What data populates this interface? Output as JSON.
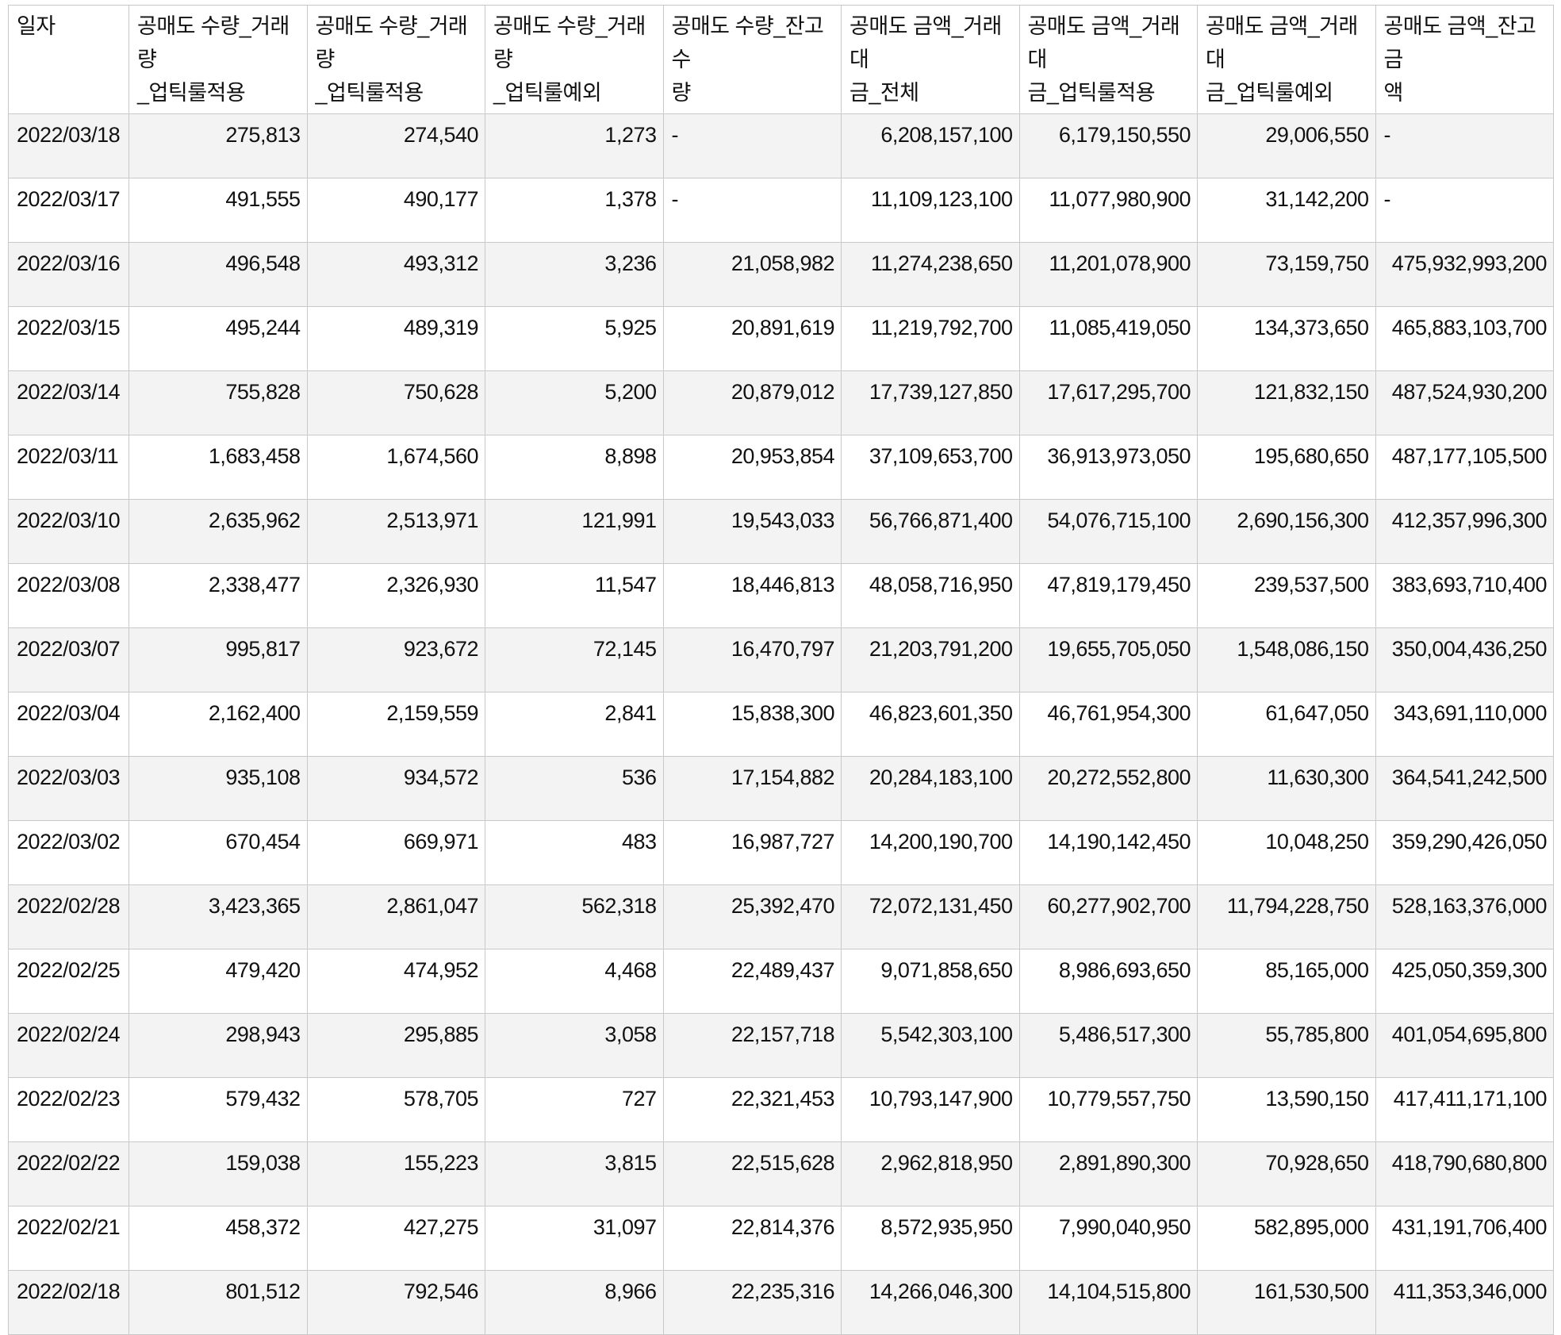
{
  "table": {
    "columns": [
      {
        "label": "일자",
        "align": "left"
      },
      {
        "label": "공매도 수량_거래량\n_업틱룰적용",
        "align": "right"
      },
      {
        "label": "공매도 수량_거래량\n_업틱룰적용",
        "align": "right"
      },
      {
        "label": "공매도 수량_거래량\n_업틱룰예외",
        "align": "right"
      },
      {
        "label": "공매도 수량_잔고수\n량",
        "align": "right"
      },
      {
        "label": "공매도 금액_거래대\n금_전체",
        "align": "right"
      },
      {
        "label": "공매도 금액_거래대\n금_업틱룰적용",
        "align": "right"
      },
      {
        "label": "공매도 금액_거래대\n금_업틱룰예외",
        "align": "right"
      },
      {
        "label": "공매도 금액_잔고금\n액",
        "align": "right"
      }
    ],
    "rows": [
      [
        "2022/03/18",
        "275,813",
        "274,540",
        "1,273",
        "-",
        "6,208,157,100",
        "6,179,150,550",
        "29,006,550",
        "-"
      ],
      [
        "2022/03/17",
        "491,555",
        "490,177",
        "1,378",
        "-",
        "11,109,123,100",
        "11,077,980,900",
        "31,142,200",
        "-"
      ],
      [
        "2022/03/16",
        "496,548",
        "493,312",
        "3,236",
        "21,058,982",
        "11,274,238,650",
        "11,201,078,900",
        "73,159,750",
        "475,932,993,200"
      ],
      [
        "2022/03/15",
        "495,244",
        "489,319",
        "5,925",
        "20,891,619",
        "11,219,792,700",
        "11,085,419,050",
        "134,373,650",
        "465,883,103,700"
      ],
      [
        "2022/03/14",
        "755,828",
        "750,628",
        "5,200",
        "20,879,012",
        "17,739,127,850",
        "17,617,295,700",
        "121,832,150",
        "487,524,930,200"
      ],
      [
        "2022/03/11",
        "1,683,458",
        "1,674,560",
        "8,898",
        "20,953,854",
        "37,109,653,700",
        "36,913,973,050",
        "195,680,650",
        "487,177,105,500"
      ],
      [
        "2022/03/10",
        "2,635,962",
        "2,513,971",
        "121,991",
        "19,543,033",
        "56,766,871,400",
        "54,076,715,100",
        "2,690,156,300",
        "412,357,996,300"
      ],
      [
        "2022/03/08",
        "2,338,477",
        "2,326,930",
        "11,547",
        "18,446,813",
        "48,058,716,950",
        "47,819,179,450",
        "239,537,500",
        "383,693,710,400"
      ],
      [
        "2022/03/07",
        "995,817",
        "923,672",
        "72,145",
        "16,470,797",
        "21,203,791,200",
        "19,655,705,050",
        "1,548,086,150",
        "350,004,436,250"
      ],
      [
        "2022/03/04",
        "2,162,400",
        "2,159,559",
        "2,841",
        "15,838,300",
        "46,823,601,350",
        "46,761,954,300",
        "61,647,050",
        "343,691,110,000"
      ],
      [
        "2022/03/03",
        "935,108",
        "934,572",
        "536",
        "17,154,882",
        "20,284,183,100",
        "20,272,552,800",
        "11,630,300",
        "364,541,242,500"
      ],
      [
        "2022/03/02",
        "670,454",
        "669,971",
        "483",
        "16,987,727",
        "14,200,190,700",
        "14,190,142,450",
        "10,048,250",
        "359,290,426,050"
      ],
      [
        "2022/02/28",
        "3,423,365",
        "2,861,047",
        "562,318",
        "25,392,470",
        "72,072,131,450",
        "60,277,902,700",
        "11,794,228,750",
        "528,163,376,000"
      ],
      [
        "2022/02/25",
        "479,420",
        "474,952",
        "4,468",
        "22,489,437",
        "9,071,858,650",
        "8,986,693,650",
        "85,165,000",
        "425,050,359,300"
      ],
      [
        "2022/02/24",
        "298,943",
        "295,885",
        "3,058",
        "22,157,718",
        "5,542,303,100",
        "5,486,517,300",
        "55,785,800",
        "401,054,695,800"
      ],
      [
        "2022/02/23",
        "579,432",
        "578,705",
        "727",
        "22,321,453",
        "10,793,147,900",
        "10,779,557,750",
        "13,590,150",
        "417,411,171,100"
      ],
      [
        "2022/02/22",
        "159,038",
        "155,223",
        "3,815",
        "22,515,628",
        "2,962,818,950",
        "2,891,890,300",
        "70,928,650",
        "418,790,680,800"
      ],
      [
        "2022/02/21",
        "458,372",
        "427,275",
        "31,097",
        "22,814,376",
        "8,572,935,950",
        "7,990,040,950",
        "582,895,000",
        "431,191,706,400"
      ],
      [
        "2022/02/18",
        "801,512",
        "792,546",
        "8,966",
        "22,235,316",
        "14,266,046,300",
        "14,104,515,800",
        "161,530,500",
        "411,353,346,000"
      ]
    ]
  },
  "colors": {
    "background": "#ffffff",
    "stripe": "#f3f3f3",
    "border": "#c9c9c9",
    "text": "#111111"
  }
}
